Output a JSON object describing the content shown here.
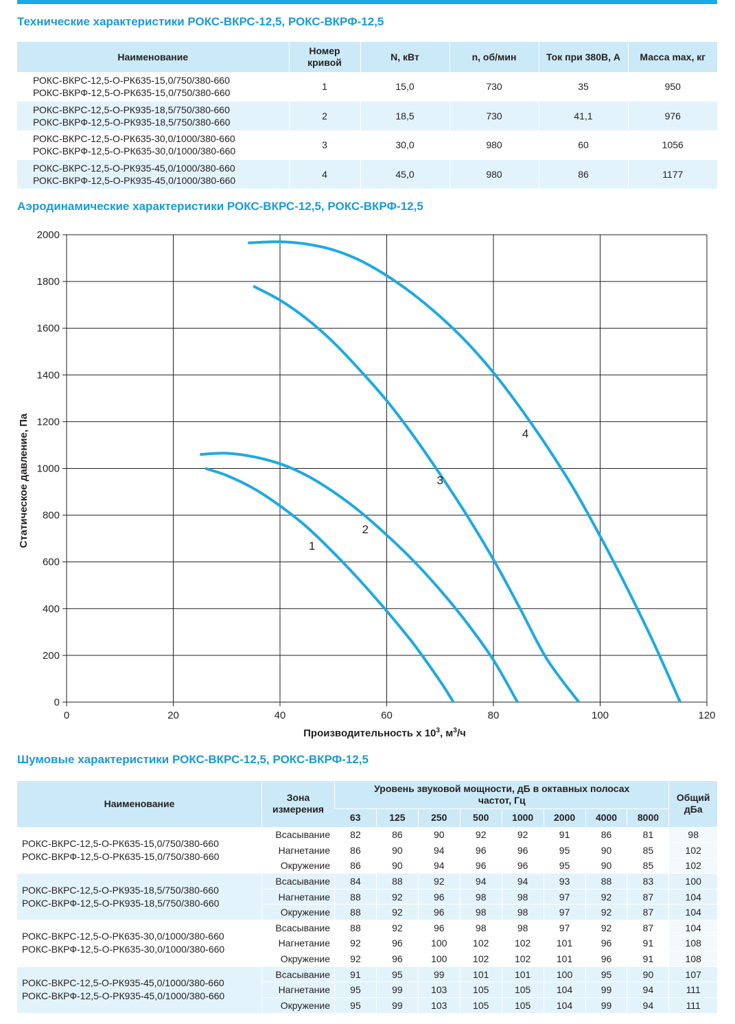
{
  "title_tech": "Технические характеристики РОКС-ВКРС-12,5, РОКС-ВКРФ-12,5",
  "title_aero": "Аэродинамические характеристики РОКС-ВКРС-12,5, РОКС-ВКРФ-12,5",
  "title_noise": "Шумовые характеристики РОКС-ВКРС-12,5, РОКС-ВКРФ-12,5",
  "accent_color": "#1fa9e1",
  "tech": {
    "headers": {
      "name": "Наименование",
      "curve_1": "Номер",
      "curve_2": "кривой",
      "power": "N, кВт",
      "rpm": "n, об/мин",
      "current": "Ток при 380В, А",
      "mass": "Масса max, кг"
    },
    "rows": [
      {
        "name1": "РОКС-ВКРС-12,5-О-РК635-15,0/750/380-660",
        "name2": "РОКС-ВКРФ-12,5-О-РК635-15,0/750/380-660",
        "curve": "1",
        "power": "15,0",
        "rpm": "730",
        "current": "35",
        "mass": "950"
      },
      {
        "name1": "РОКС-ВКРС-12,5-О-РК935-18,5/750/380-660",
        "name2": "РОКС-ВКРФ-12,5-О-РК935-18,5/750/380-660",
        "curve": "2",
        "power": "18,5",
        "rpm": "730",
        "current": "41,1",
        "mass": "976"
      },
      {
        "name1": "РОКС-ВКРС-12,5-О-РК635-30,0/1000/380-660",
        "name2": "РОКС-ВКРФ-12,5-О-РК635-30,0/1000/380-660",
        "curve": "3",
        "power": "30,0",
        "rpm": "980",
        "current": "60",
        "mass": "1056"
      },
      {
        "name1": "РОКС-ВКРС-12,5-О-РК935-45,0/1000/380-660",
        "name2": "РОКС-ВКРФ-12,5-О-РК935-45,0/1000/380-660",
        "curve": "4",
        "power": "45,0",
        "rpm": "980",
        "current": "86",
        "mass": "1177"
      }
    ]
  },
  "chart_data": {
    "type": "line",
    "xlabel": "Производительность х 10³, м³/ч",
    "xlabel_main": "Производительность х 10",
    "xlabel_sup1": "3",
    "xlabel_mid": ", м",
    "xlabel_sup2": "3",
    "xlabel_end": "/ч",
    "ylabel": "Статическое давление, Па",
    "xlim": [
      0,
      120
    ],
    "ylim": [
      0,
      2000
    ],
    "xticks": [
      0,
      20,
      40,
      60,
      80,
      100,
      120
    ],
    "yticks": [
      0,
      200,
      400,
      600,
      800,
      1000,
      1200,
      1400,
      1600,
      1800,
      2000
    ],
    "grid": true,
    "line_color": "#1fa9e1",
    "series": [
      {
        "name": "1",
        "x": [
          26,
          30,
          35,
          40,
          45,
          50,
          55,
          60,
          65,
          70,
          72.5
        ],
        "y": [
          1000,
          970,
          915,
          840,
          750,
          640,
          520,
          390,
          250,
          90,
          0
        ]
      },
      {
        "name": "2",
        "x": [
          25,
          30,
          35,
          40,
          45,
          50,
          55,
          60,
          65,
          70,
          75,
          80,
          84.5
        ],
        "y": [
          1060,
          1065,
          1050,
          1020,
          970,
          900,
          815,
          715,
          605,
          480,
          340,
          180,
          0
        ]
      },
      {
        "name": "3",
        "x": [
          35,
          40,
          45,
          50,
          55,
          60,
          65,
          70,
          75,
          80,
          85,
          90,
          96
        ],
        "y": [
          1780,
          1720,
          1640,
          1540,
          1420,
          1290,
          1140,
          975,
          800,
          610,
          400,
          185,
          0
        ]
      },
      {
        "name": "4",
        "x": [
          34,
          40,
          45,
          50,
          55,
          60,
          65,
          70,
          75,
          80,
          85,
          90,
          95,
          100,
          105,
          110,
          115
        ],
        "y": [
          1965,
          1970,
          1960,
          1935,
          1890,
          1825,
          1745,
          1650,
          1540,
          1410,
          1260,
          1095,
          915,
          710,
          490,
          255,
          0
        ]
      }
    ],
    "annotations": [
      {
        "text": "1",
        "x": 46,
        "y": 670
      },
      {
        "text": "2",
        "x": 56,
        "y": 740
      },
      {
        "text": "3",
        "x": 70,
        "y": 950
      },
      {
        "text": "4",
        "x": 86,
        "y": 1150
      }
    ]
  },
  "noise": {
    "headers": {
      "name": "Наименование",
      "zone_1": "Зона",
      "zone_2": "измерения",
      "level_1": "Уровень звуковой мощности, дБ в октавных полосах",
      "level_2": "частот, Гц",
      "total_1": "Общий",
      "total_2": "дБа",
      "freqs": [
        "63",
        "125",
        "250",
        "500",
        "1000",
        "2000",
        "4000",
        "8000"
      ]
    },
    "groups": [
      {
        "name1": "РОКС-ВКРС-12,5-О-РК635-15,0/750/380-660",
        "name2": "РОКС-ВКРФ-12,5-О-РК635-15,0/750/380-660",
        "rows": [
          {
            "zone": "Всасывание",
            "values": [
              "82",
              "86",
              "90",
              "92",
              "92",
              "91",
              "86",
              "81"
            ],
            "total": "98"
          },
          {
            "zone": "Нагнетание",
            "values": [
              "86",
              "90",
              "94",
              "96",
              "96",
              "95",
              "90",
              "85"
            ],
            "total": "102"
          },
          {
            "zone": "Окружение",
            "values": [
              "86",
              "90",
              "94",
              "96",
              "96",
              "95",
              "90",
              "85"
            ],
            "total": "102"
          }
        ]
      },
      {
        "name1": "РОКС-ВКРС-12,5-О-РК935-18,5/750/380-660",
        "name2": "РОКС-ВКРФ-12,5-О-РК935-18,5/750/380-660",
        "rows": [
          {
            "zone": "Всасывание",
            "values": [
              "84",
              "88",
              "92",
              "94",
              "94",
              "93",
              "88",
              "83"
            ],
            "total": "100"
          },
          {
            "zone": "Нагнетание",
            "values": [
              "88",
              "92",
              "96",
              "98",
              "98",
              "97",
              "92",
              "87"
            ],
            "total": "104"
          },
          {
            "zone": "Окружение",
            "values": [
              "88",
              "92",
              "96",
              "98",
              "98",
              "97",
              "92",
              "87"
            ],
            "total": "104"
          }
        ]
      },
      {
        "name1": "РОКС-ВКРС-12,5-О-РК635-30,0/1000/380-660",
        "name2": "РОКС-ВКРФ-12,5-О-РК635-30,0/1000/380-660",
        "rows": [
          {
            "zone": "Всасывание",
            "values": [
              "88",
              "92",
              "96",
              "98",
              "98",
              "97",
              "92",
              "87"
            ],
            "total": "104"
          },
          {
            "zone": "Нагнетание",
            "values": [
              "92",
              "96",
              "100",
              "102",
              "102",
              "101",
              "96",
              "91"
            ],
            "total": "108"
          },
          {
            "zone": "Окружение",
            "values": [
              "92",
              "96",
              "100",
              "102",
              "102",
              "101",
              "96",
              "91"
            ],
            "total": "108"
          }
        ]
      },
      {
        "name1": "РОКС-ВКРС-12,5-О-РК935-45,0/1000/380-660",
        "name2": "РОКС-ВКРФ-12,5-О-РК935-45,0/1000/380-660",
        "rows": [
          {
            "zone": "Всасывание",
            "values": [
              "91",
              "95",
              "99",
              "101",
              "101",
              "100",
              "95",
              "90"
            ],
            "total": "107"
          },
          {
            "zone": "Нагнетание",
            "values": [
              "95",
              "99",
              "103",
              "105",
              "105",
              "104",
              "99",
              "94"
            ],
            "total": "111"
          },
          {
            "zone": "Окружение",
            "values": [
              "95",
              "99",
              "103",
              "105",
              "105",
              "104",
              "99",
              "94"
            ],
            "total": "111"
          }
        ]
      }
    ]
  }
}
